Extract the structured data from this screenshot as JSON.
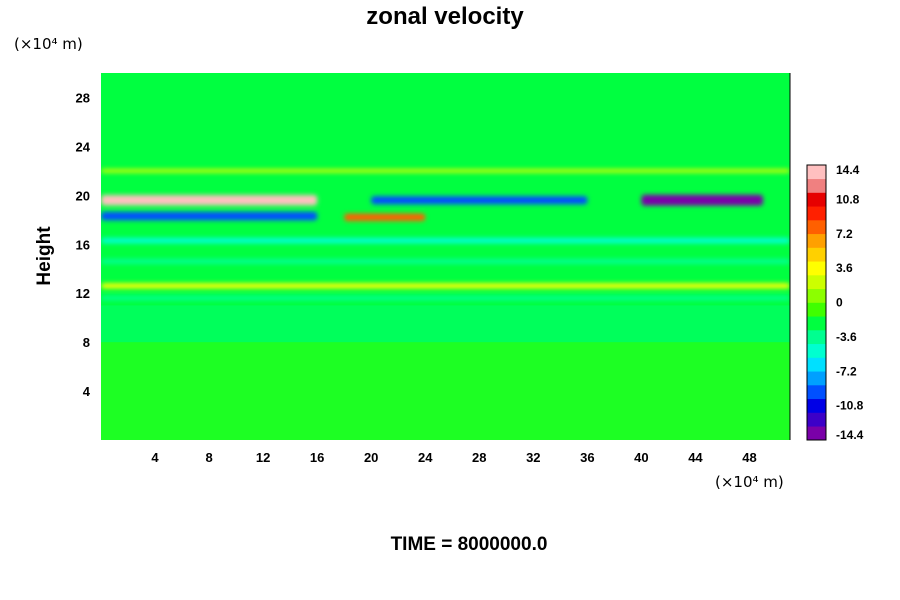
{
  "chart_data": {
    "type": "heatmap",
    "title": "zonal velocity",
    "ylabel": "Height",
    "x_unit": "(×10⁴ m)",
    "y_unit": "(×10⁴ m)",
    "time_label": "TIME = 8000000.0",
    "xlim": [
      0,
      51
    ],
    "ylim": [
      0,
      30
    ],
    "x_ticks": [
      4,
      8,
      12,
      16,
      20,
      24,
      28,
      32,
      36,
      40,
      44,
      48
    ],
    "x_tick_labels": [
      "4",
      "8",
      "12",
      "16",
      "20",
      "24",
      "28",
      "32",
      "36",
      "40",
      "44",
      "48"
    ],
    "y_ticks": [
      4,
      8,
      12,
      16,
      20,
      24,
      28
    ],
    "y_tick_labels": [
      "4",
      "8",
      "12",
      "16",
      "20",
      "24",
      "28"
    ],
    "colorbar": {
      "min": -14.4,
      "max": 14.4,
      "ticks": [
        14.4,
        10.8,
        7.2,
        3.6,
        0,
        -3.6,
        -7.2,
        -10.8,
        -14.4
      ],
      "tick_labels": [
        "14.4",
        "10.8",
        "7.2",
        "3.6",
        "0",
        "-3.6",
        "-7.2",
        "-10.8",
        "-14.4"
      ],
      "colors": [
        "#7a00a8",
        "#3c00c8",
        "#0000e6",
        "#0050ff",
        "#00a0ff",
        "#00e0ff",
        "#00ffd0",
        "#00ff90",
        "#00ff40",
        "#40ff00",
        "#8cff00",
        "#ccff00",
        "#ffff00",
        "#ffd000",
        "#ffa000",
        "#ff6000",
        "#ff2000",
        "#e60000",
        "#f08080",
        "#ffc0c0"
      ]
    },
    "field_bands": [
      {
        "y": 19.6,
        "x_range": [
          0,
          16
        ],
        "value": 13.5
      },
      {
        "y": 19.6,
        "x_range": [
          40,
          49
        ],
        "value": -14.4
      },
      {
        "y": 19.6,
        "x_range": [
          20,
          36
        ],
        "value": -9
      },
      {
        "y": 18.3,
        "x_range": [
          0,
          16
        ],
        "value": -10
      },
      {
        "y": 18.2,
        "x_range": [
          18,
          24
        ],
        "value": 8
      },
      {
        "y": 16.3,
        "x_range": [
          0,
          51
        ],
        "value": -5
      },
      {
        "y": 14.6,
        "x_range": [
          0,
          51
        ],
        "value": -4
      },
      {
        "y": 12.6,
        "x_range": [
          0,
          51
        ],
        "value": 4
      },
      {
        "y": 11.6,
        "x_range": [
          0,
          51
        ],
        "value": -3
      },
      {
        "y": 22,
        "x_range": [
          0,
          51
        ],
        "value": 1.5
      }
    ]
  }
}
